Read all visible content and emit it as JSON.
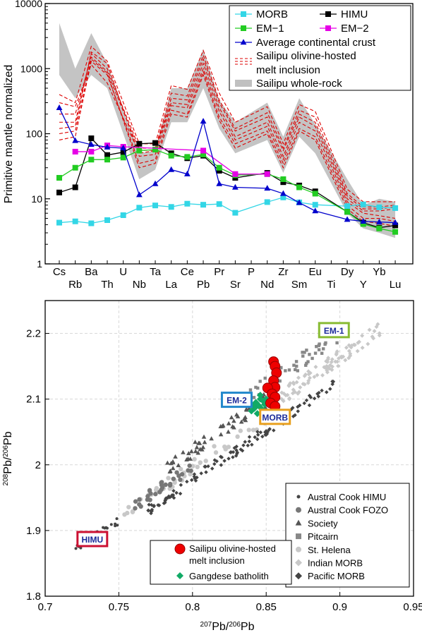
{
  "chart_data": [
    {
      "type": "line",
      "ylabel": "Primitive mantle normalized",
      "yscale": "log",
      "ylim": [
        1,
        10000
      ],
      "yticks": [
        "1",
        "10",
        "100",
        "1000",
        "10000"
      ],
      "categories": [
        "Cs",
        "Rb",
        "Ba",
        "Th",
        "U",
        "Nb",
        "Ta",
        "La",
        "Ce",
        "Pb",
        "Pr",
        "Sr",
        "P",
        "Nd",
        "Zr",
        "Sm",
        "Eu",
        "Ti",
        "Dy",
        "Y",
        "Yb",
        "Lu"
      ],
      "legend": [
        {
          "label": "MORB",
          "color": "#33d6e6",
          "marker": "square"
        },
        {
          "label": "HIMU",
          "color": "#000000",
          "marker": "square"
        },
        {
          "label": "EM−1",
          "color": "#22cc22",
          "marker": "square"
        },
        {
          "label": "EM−2",
          "color": "#e600e6",
          "marker": "square"
        },
        {
          "label": "Average continental crust",
          "color": "#0000cc",
          "marker": "triangle"
        },
        {
          "label": "Sailipu olivine-hosted",
          "color": "#dd0000",
          "marker": "dashed"
        },
        {
          "label": "melt inclusion",
          "color": "#dd0000",
          "marker": "none"
        },
        {
          "label": "Sailipu whole-rock",
          "color": "#c0c0c0",
          "marker": "band"
        }
      ],
      "series": [
        {
          "name": "MORB",
          "color": "#33d6e6",
          "values": [
            4.3,
            4.5,
            4.2,
            4.7,
            5.6,
            7.3,
            7.9,
            7.5,
            8.4,
            8.1,
            8.3,
            6.1,
            null,
            8.9,
            10.5,
            8.8,
            8.1,
            null,
            7.7,
            8.2,
            7.4,
            7.2
          ]
        },
        {
          "name": "HIMU",
          "color": "#000000",
          "values": [
            12.5,
            15,
            85,
            47,
            52,
            70,
            72,
            50,
            42,
            46,
            27,
            21,
            null,
            25,
            18,
            16,
            13,
            null,
            6.3,
            4.3,
            3.6,
            3.9
          ]
        },
        {
          "name": "EM−1",
          "color": "#22cc22",
          "values": [
            21,
            30,
            40,
            40,
            43,
            55,
            57,
            46,
            44,
            48,
            30,
            23,
            null,
            24,
            20,
            15,
            12,
            null,
            6.3,
            4.1,
            3.5,
            3.1
          ]
        },
        {
          "name": "EM−2",
          "color": "#e600e6",
          "values": [
            null,
            53,
            53,
            66,
            63,
            null,
            null,
            null,
            null,
            55,
            null,
            24,
            null,
            24,
            null,
            null,
            null,
            null,
            null,
            null,
            null,
            null
          ]
        },
        {
          "name": "Average continental crust",
          "color": "#0000cc",
          "values": [
            250,
            78,
            68,
            62,
            60,
            11.5,
            17,
            28,
            24,
            155,
            17,
            15,
            null,
            14.5,
            12,
            8.7,
            6.5,
            null,
            4.8,
            4.5,
            4.4,
            4.3
          ]
        }
      ],
      "melt_inclusions": [
        [
          300,
          260,
          1150,
          600,
          null,
          50,
          55,
          300,
          280,
          1200,
          250,
          90,
          null,
          150,
          45,
          180,
          130,
          null,
          10,
          6.5,
          6.5,
          7
        ],
        [
          200,
          200,
          1500,
          900,
          null,
          55,
          56,
          350,
          330,
          1400,
          300,
          110,
          null,
          180,
          55,
          200,
          150,
          null,
          11,
          7,
          7,
          7.5
        ],
        [
          150,
          150,
          1700,
          1000,
          null,
          60,
          60,
          420,
          380,
          1600,
          330,
          120,
          null,
          210,
          60,
          230,
          180,
          null,
          12,
          7.5,
          7.5,
          8
        ],
        [
          120,
          130,
          1800,
          1200,
          null,
          45,
          48,
          270,
          250,
          1000,
          220,
          80,
          null,
          130,
          40,
          150,
          110,
          null,
          9,
          6,
          5.5,
          5
        ],
        [
          80,
          90,
          1300,
          800,
          null,
          35,
          40,
          230,
          200,
          900,
          180,
          70,
          null,
          110,
          35,
          120,
          90,
          null,
          8,
          5,
          5,
          4.5
        ],
        [
          100,
          110,
          1400,
          850,
          null,
          30,
          35,
          200,
          180,
          800,
          160,
          60,
          null,
          100,
          30,
          110,
          80,
          null,
          7,
          4.5,
          4.2,
          3.8
        ],
        [
          400,
          300,
          2200,
          1300,
          null,
          70,
          70,
          550,
          480,
          1900,
          420,
          150,
          null,
          260,
          70,
          280,
          220,
          null,
          14,
          9,
          9,
          9
        ]
      ],
      "whole_rock_band": {
        "low": [
          800,
          350,
          800,
          500,
          null,
          20,
          28,
          150,
          150,
          500,
          120,
          50,
          null,
          80,
          25,
          90,
          50,
          null,
          6,
          3.5,
          3,
          2.5
        ],
        "high": [
          5000,
          1000,
          3500,
          1200,
          null,
          50,
          55,
          500,
          500,
          2000,
          330,
          150,
          null,
          300,
          90,
          350,
          140,
          null,
          20,
          8,
          10,
          9
        ]
      }
    },
    {
      "type": "scatter",
      "xlabel_pre": "207",
      "xlabel_mid": "Pb/",
      "xlabel_sup": "206",
      "xlabel_post": "Pb",
      "ylabel_pre": "208",
      "ylabel_mid": "Pb/",
      "ylabel_sup": "206",
      "ylabel_post": "Pb",
      "xlim": [
        0.7,
        0.95
      ],
      "ylim": [
        1.8,
        2.25
      ],
      "xticks": [
        "0.7",
        "0.75",
        "0.8",
        "0.85",
        "0.9",
        "0.95"
      ],
      "yticks": [
        "1.8",
        "1.9",
        "2",
        "2.1",
        "2.2"
      ],
      "grid": true,
      "end_members": [
        {
          "label": "HIMU",
          "x": 0.732,
          "y": 1.887,
          "color": "#cc1133"
        },
        {
          "label": "EM-2",
          "x": 0.83,
          "y": 2.099,
          "color": "#2288cc"
        },
        {
          "label": "MORB",
          "x": 0.856,
          "y": 2.073,
          "color": "#e8a020"
        },
        {
          "label": "EM-1",
          "x": 0.896,
          "y": 2.205,
          "color": "#88bb33"
        }
      ],
      "legend_right": [
        {
          "label": "Austral Cook HIMU",
          "marker": "dot",
          "color": "#444444"
        },
        {
          "label": "Austral Cook FOZO",
          "marker": "circle",
          "color": "#777777"
        },
        {
          "label": "Society",
          "marker": "triangle",
          "color": "#555555"
        },
        {
          "label": "Pitcairn",
          "marker": "square",
          "color": "#888888"
        },
        {
          "label": "St. Helena",
          "marker": "circle",
          "color": "#c8c8c8"
        },
        {
          "label": "Indian MORB",
          "marker": "diamond",
          "color": "#c8c8c8"
        },
        {
          "label": "Pacific MORB",
          "marker": "diamond",
          "color": "#444444"
        }
      ],
      "legend_left": [
        {
          "label": "Sailipu olivine-hosted",
          "marker": "circle",
          "color": "#ee0000"
        },
        {
          "label": "melt inclusion",
          "marker": "none",
          "color": "#ee0000"
        },
        {
          "label": "Gangdese  batholith",
          "marker": "diamond",
          "color": "#11aa66"
        }
      ],
      "sailipu": [
        {
          "x": 0.855,
          "y": 2.157
        },
        {
          "x": 0.856,
          "y": 2.15
        },
        {
          "x": 0.857,
          "y": 2.14
        },
        {
          "x": 0.855,
          "y": 2.128
        },
        {
          "x": 0.856,
          "y": 2.118
        },
        {
          "x": 0.851,
          "y": 2.117
        },
        {
          "x": 0.854,
          "y": 2.108
        },
        {
          "x": 0.856,
          "y": 2.103
        },
        {
          "x": 0.853,
          "y": 2.094
        },
        {
          "x": 0.856,
          "y": 2.089
        }
      ],
      "gangdese": [
        {
          "x": 0.84,
          "y": 2.082
        },
        {
          "x": 0.842,
          "y": 2.086
        },
        {
          "x": 0.845,
          "y": 2.09
        },
        {
          "x": 0.843,
          "y": 2.095
        },
        {
          "x": 0.846,
          "y": 2.1
        },
        {
          "x": 0.848,
          "y": 2.097
        },
        {
          "x": 0.849,
          "y": 2.092
        },
        {
          "x": 0.844,
          "y": 2.078
        },
        {
          "x": 0.847,
          "y": 2.085
        },
        {
          "x": 0.841,
          "y": 2.09
        },
        {
          "x": 0.85,
          "y": 2.1
        },
        {
          "x": 0.846,
          "y": 2.106
        }
      ]
    }
  ]
}
